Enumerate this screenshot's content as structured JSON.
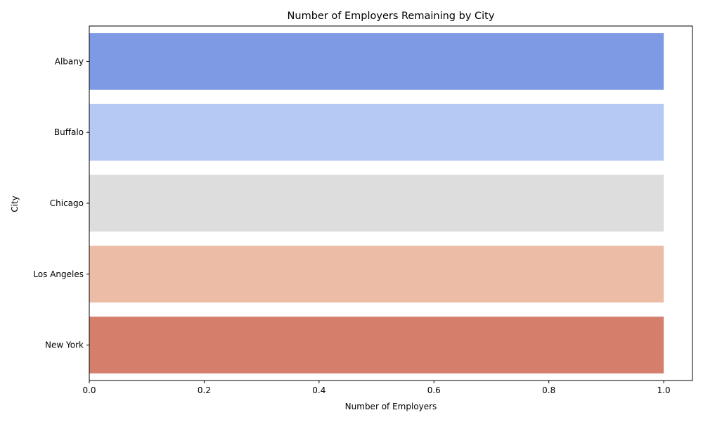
{
  "chart_data": {
    "type": "bar",
    "orientation": "horizontal",
    "title": "Number of Employers Remaining by City",
    "xlabel": "Number of Employers",
    "ylabel": "City",
    "categories": [
      "Albany",
      "Buffalo",
      "Chicago",
      "Los Angeles",
      "New York"
    ],
    "values": [
      1,
      1,
      1,
      1,
      1
    ],
    "colors": [
      "#7f9ae4",
      "#b5c9f4",
      "#dddddd",
      "#ecbca6",
      "#d57e6c"
    ],
    "xlim": [
      0,
      1.05
    ],
    "xticks": [
      0.0,
      0.2,
      0.4,
      0.6,
      0.8,
      1.0
    ],
    "xtick_labels": [
      "0.0",
      "0.2",
      "0.4",
      "0.6",
      "0.8",
      "1.0"
    ],
    "grid": false,
    "legend": "none"
  }
}
